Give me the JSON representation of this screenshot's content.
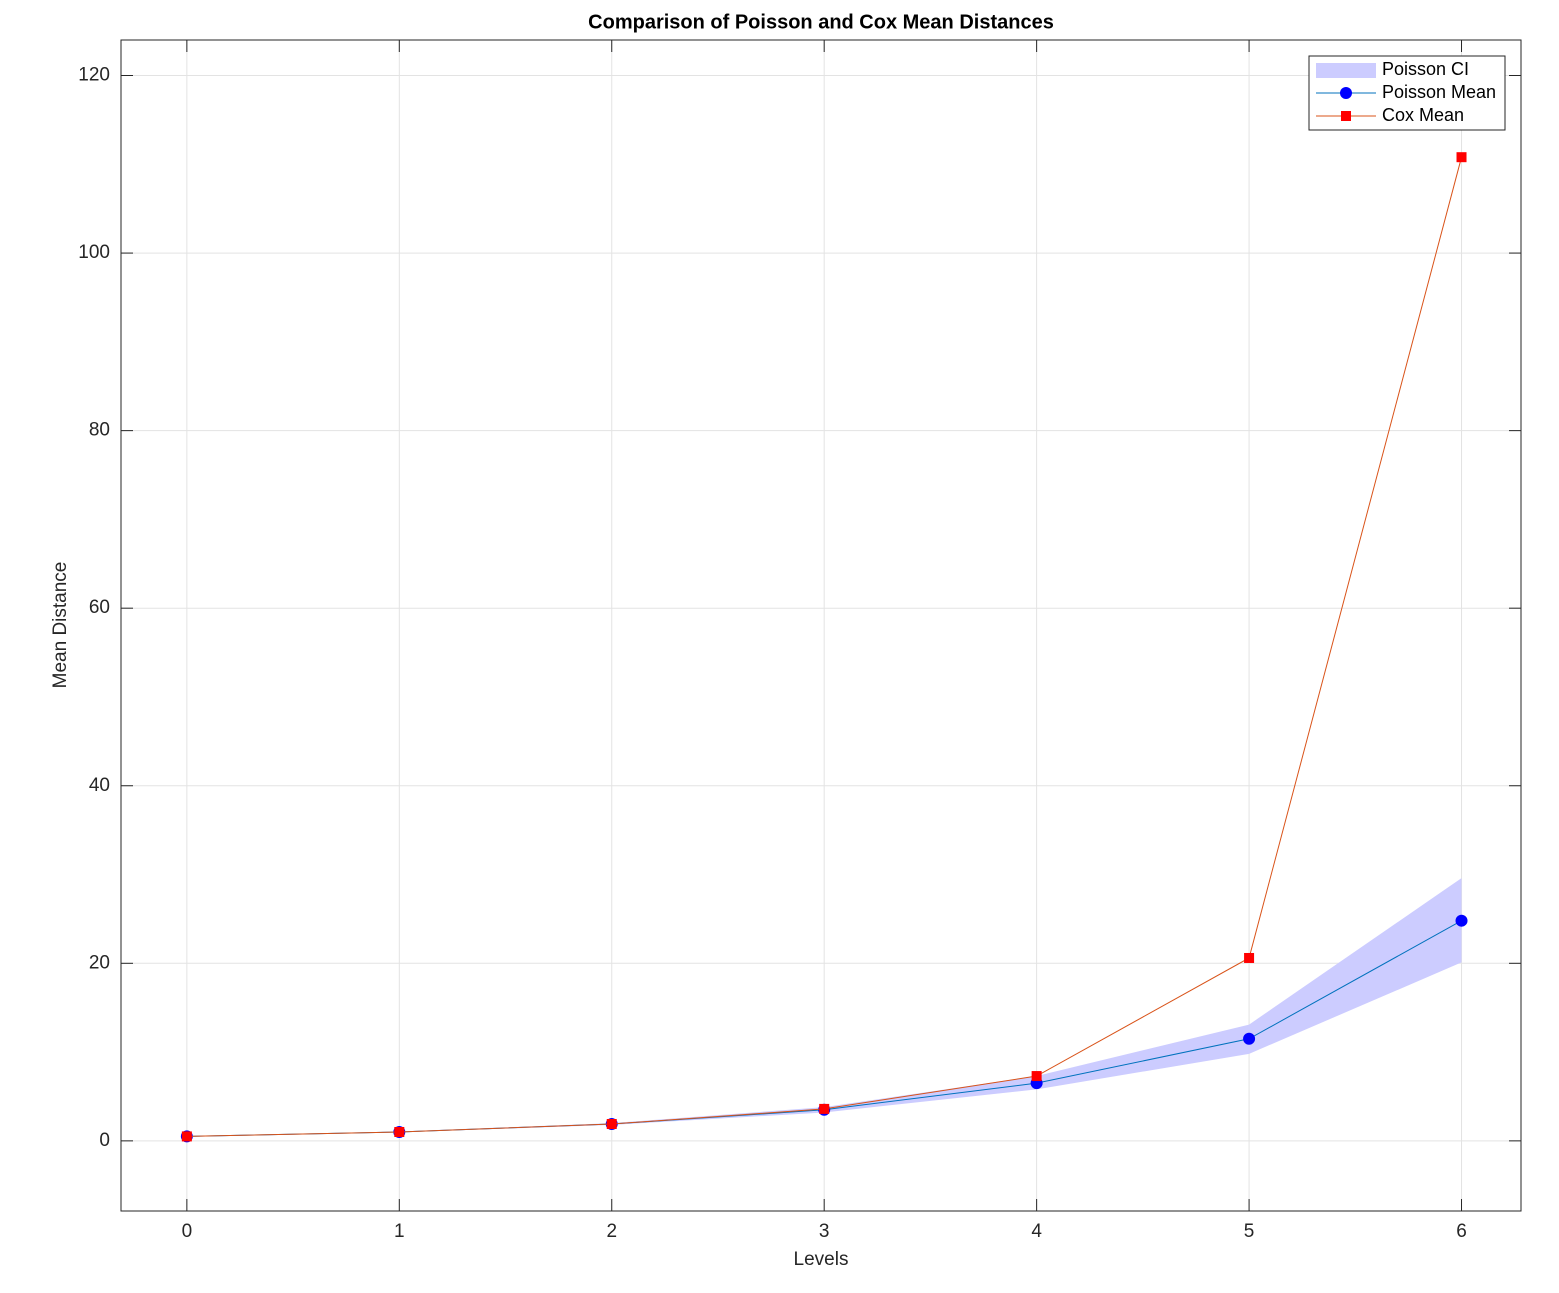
{
  "chart_data": {
    "type": "line",
    "title": "Comparison of Poisson and Cox Mean Distances",
    "x_label": "Levels",
    "y_label": "Mean Distance",
    "x": [
      0,
      1,
      2,
      3,
      4,
      5,
      6
    ],
    "xlim": [
      -0.31,
      6.28
    ],
    "xticks": [
      0,
      1,
      2,
      3,
      4,
      5,
      6
    ],
    "ylim": [
      -7.9,
      124
    ],
    "yticks": [
      0,
      20,
      40,
      60,
      80,
      100,
      120
    ],
    "grid": true,
    "legend": "top-right",
    "band": {
      "name": "Poisson CI",
      "color": "#ccccff",
      "lower": [
        0.45,
        0.95,
        1.8,
        3.2,
        5.8,
        9.8,
        20.1
      ],
      "upper": [
        0.55,
        1.05,
        2.0,
        3.8,
        7.3,
        13.1,
        29.6
      ]
    },
    "series": [
      {
        "name": "Poisson Mean",
        "color": "#0072bd",
        "marker": "circle",
        "marker_color": "#0000ff",
        "values": [
          0.5,
          1.0,
          1.9,
          3.5,
          6.5,
          11.5,
          24.8
        ]
      },
      {
        "name": "Cox Mean",
        "color": "#d95319",
        "marker": "square",
        "marker_color": "#ff0000",
        "values": [
          0.5,
          1.0,
          1.9,
          3.6,
          7.3,
          20.6,
          110.8
        ]
      }
    ]
  }
}
